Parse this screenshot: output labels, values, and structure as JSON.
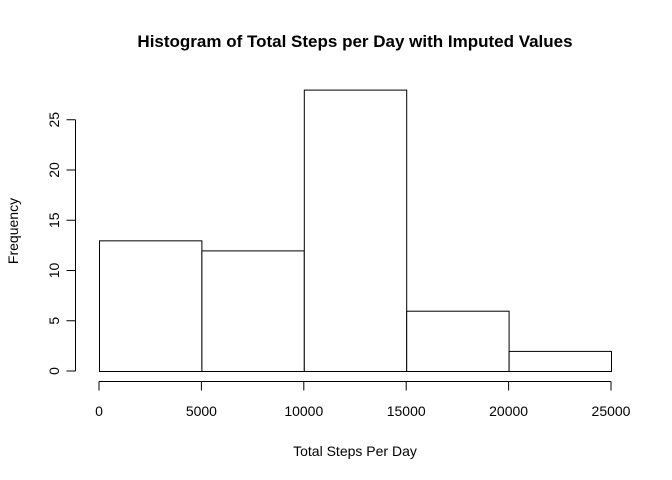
{
  "chart_data": {
    "type": "bar",
    "title": "Histogram of Total Steps per Day with Imputed Values",
    "xlabel": "Total Steps Per Day",
    "ylabel": "Frequency",
    "bins": [
      {
        "start": 0,
        "end": 5000,
        "value": 13
      },
      {
        "start": 5000,
        "end": 10000,
        "value": 12
      },
      {
        "start": 10000,
        "end": 15000,
        "value": 28
      },
      {
        "start": 15000,
        "end": 20000,
        "value": 6
      },
      {
        "start": 20000,
        "end": 25000,
        "value": 2
      }
    ],
    "xlim": [
      0,
      25000
    ],
    "ylim": [
      0,
      28
    ],
    "x_ticks": [
      0,
      5000,
      10000,
      15000,
      20000,
      25000
    ],
    "y_ticks": [
      0,
      5,
      10,
      15,
      20,
      25
    ],
    "x_tick_labels": [
      "0",
      "5000",
      "10000",
      "15000",
      "20000",
      "25000"
    ],
    "y_tick_labels": [
      "0",
      "5",
      "10",
      "15",
      "20",
      "25"
    ],
    "grid": false,
    "legend": "none",
    "colors": {
      "bar_fill": "#ffffff",
      "bar_stroke": "#000000"
    }
  }
}
